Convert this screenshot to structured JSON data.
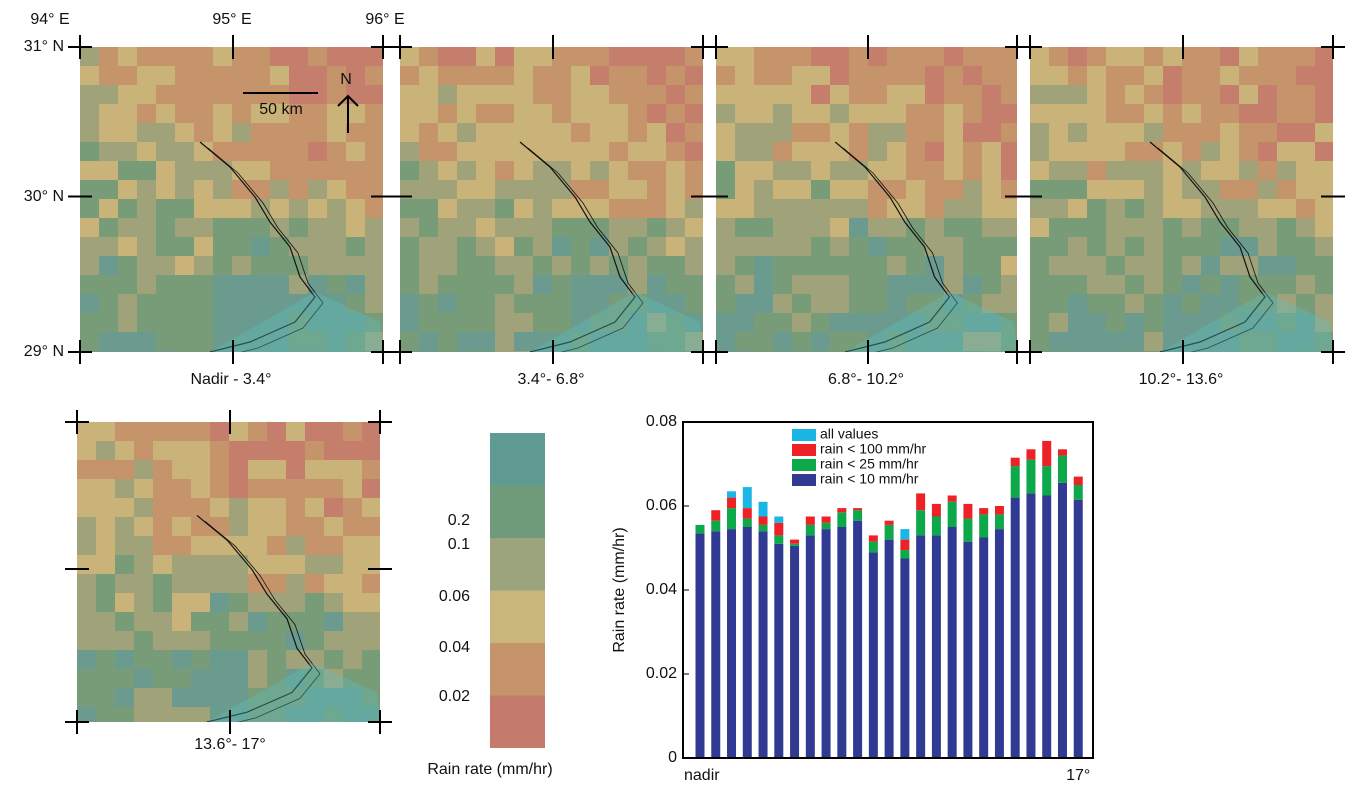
{
  "maps": [
    {
      "label": "Nadir - 3.4°"
    },
    {
      "label": "3.4°- 6.8°"
    },
    {
      "label": "6.8°- 10.2°"
    },
    {
      "label": "10.2°- 13.6°"
    },
    {
      "label": "13.6°- 17°"
    }
  ],
  "longitudes": [
    "94° E",
    "95° E",
    "96° E"
  ],
  "latitudes": [
    "31° N",
    "30° N",
    "29° N"
  ],
  "scale_bar": "50 km",
  "north": "N",
  "colorbar": {
    "label": "Rain rate (mm/hr)",
    "ticks": [
      0.2,
      0.1,
      0.06,
      0.04,
      0.02
    ],
    "colors": [
      "#5f9b92",
      "#6f9b7a",
      "#9ba47c",
      "#c9b67a",
      "#c5946a",
      "#c47b6d"
    ]
  },
  "chart_data": {
    "type": "stacked_bar",
    "ylabel": "Rain rate (mm/hr)",
    "categories": [
      "nadir",
      null,
      null,
      null,
      null,
      null,
      null,
      null,
      null,
      null,
      null,
      null,
      null,
      null,
      null,
      null,
      null,
      null,
      null,
      null,
      null,
      null,
      null,
      null,
      "17°"
    ],
    "series": [
      {
        "name": "rain < 10 mm/hr",
        "color": "#313a93",
        "values": [
          0.0535,
          0.054,
          0.0545,
          0.055,
          0.054,
          0.051,
          0.0505,
          0.053,
          0.0545,
          0.055,
          0.0565,
          0.049,
          0.052,
          0.0475,
          0.053,
          0.053,
          0.055,
          0.0515,
          0.0525,
          0.0545,
          0.062,
          0.063,
          0.0625,
          0.0655,
          0.0615
        ]
      },
      {
        "name": "rain < 25 mm/hr",
        "color": "#0ca84a",
        "values": [
          0.002,
          0.0025,
          0.005,
          0.002,
          0.0015,
          0.002,
          0.0005,
          0.0025,
          0.0015,
          0.0035,
          0.0025,
          0.0025,
          0.0035,
          0.002,
          0.006,
          0.0045,
          0.006,
          0.0055,
          0.0055,
          0.0035,
          0.0075,
          0.008,
          0.007,
          0.0065,
          0.0035
        ]
      },
      {
        "name": "rain < 100 mm/hr",
        "color": "#ec2227",
        "values": [
          0,
          0.0025,
          0.0025,
          0.0025,
          0.002,
          0.003,
          0.001,
          0.002,
          0.0015,
          0.001,
          0.0005,
          0.0015,
          0.001,
          0.0025,
          0.004,
          0.003,
          0.0015,
          0.0035,
          0.0015,
          0.002,
          0.002,
          0.0025,
          0.006,
          0.0015,
          0.002
        ]
      },
      {
        "name": "all values",
        "color": "#1ab6e6",
        "values": [
          0,
          0,
          0.0015,
          0.005,
          0.0035,
          0.0015,
          0,
          0,
          0,
          0,
          0,
          0,
          0,
          0.0025,
          0,
          0,
          0,
          0,
          0,
          0,
          0,
          0,
          0,
          0,
          0
        ]
      }
    ],
    "ylim": [
      0,
      0.08
    ],
    "yticks": [
      0,
      0.02,
      0.04,
      0.06,
      0.08
    ]
  }
}
